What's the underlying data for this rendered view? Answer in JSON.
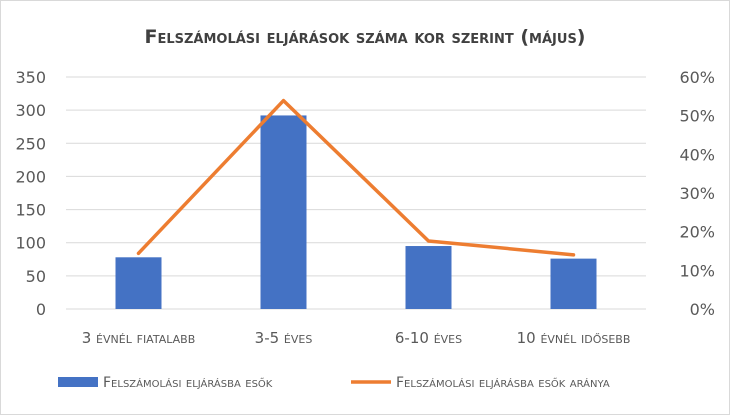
{
  "chart_data": {
    "type": "bar",
    "title": "Felszámolási eljárások száma kor szerint (május)",
    "categories": [
      "3 évnél fiatalabb",
      "3-5 éves",
      "6-10 éves",
      "10 évnél idősebb"
    ],
    "series": [
      {
        "name": "Felszámolási eljárásba esők",
        "type": "bar",
        "axis": "left",
        "color": "#4472C4",
        "values": [
          78,
          292,
          95,
          76
        ]
      },
      {
        "name": "Felszámolási eljárásba esők aránya",
        "type": "line",
        "axis": "right",
        "color": "#ED7D31",
        "values": [
          0.144,
          0.539,
          0.176,
          0.14
        ]
      }
    ],
    "y_left": {
      "min": 0,
      "max": 350,
      "step": 50,
      "ticks": [
        "0",
        "50",
        "100",
        "150",
        "200",
        "250",
        "300",
        "350"
      ]
    },
    "y_right": {
      "min": 0,
      "max": 0.6,
      "step": 0.1,
      "ticks": [
        "0%",
        "10%",
        "20%",
        "30%",
        "40%",
        "50%",
        "60%"
      ]
    },
    "grid": true,
    "legend_position": "bottom"
  }
}
